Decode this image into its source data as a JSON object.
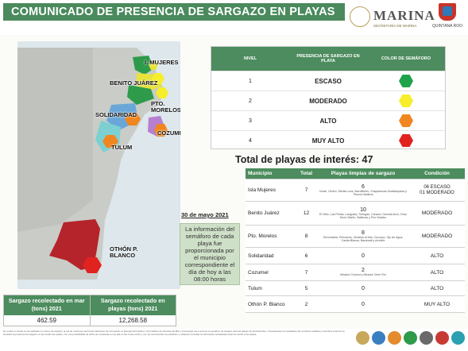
{
  "header": {
    "title": "COMUNICADO DE PRESENCIA DE SARGAZO EN PLAYAS",
    "marina_name": "MARINA",
    "marina_sub": "SECRETARÍA DE MARINA",
    "state_label": "QUINTANA ROO"
  },
  "map": {
    "labels": {
      "mujeres": "I. MUJERES",
      "benito": "BENITO JUÁREZ",
      "morelos": "PTO.\nMORELOS",
      "solidaridad": "SOLIDARIDAD",
      "cozumel": "COZUMEL",
      "tulum": "TULUM",
      "othon": "OTHÓN P.\nBLANCO"
    }
  },
  "legend": {
    "headers": [
      "NIVEL",
      "PRESENCIA DE SARGAZO EN PLAYA",
      "COLOR DE SEMÁFORO"
    ],
    "rows": [
      {
        "nivel": "1",
        "presencia": "ESCASO",
        "color": "#1fa34a"
      },
      {
        "nivel": "2",
        "presencia": "MODERADO",
        "color": "#f6ee2b"
      },
      {
        "nivel": "3",
        "presencia": "ALTO",
        "color": "#f0861f"
      },
      {
        "nivel": "4",
        "presencia": "MUY ALTO",
        "color": "#e0231e"
      }
    ]
  },
  "total_label": "Total de playas de interés: 47",
  "table": {
    "headers": [
      "Municipio",
      "Total",
      "Playas limpias de sargazo",
      "Condición"
    ],
    "rows": [
      {
        "m": "Isla Mujeres",
        "t": "7",
        "n": "6",
        "d": "Norte, Centro, Media Luna, Bachilleres, Chapanecas-Guadalupana y Tiburón Ballena",
        "c": "06 ESCASO\n01 MODERADO"
      },
      {
        "m": "Benito Juárez",
        "t": "12",
        "n": "10",
        "d": "El Niño, Las Perlas, Langosta, Tortugas, Caracol, Gaviota Azul, Chac Mool, Marlín, Ballenas y Pez Volador",
        "c": "MODERADO"
      },
      {
        "m": "Pto. Morelos",
        "t": "8",
        "n": "8",
        "d": "Secundaria, Pelícanos, Ventana al Mar, Cocoyoc, Ojo de Agua, Casita Blanca, Bandwall y Arrecife",
        "c": "MODERADO"
      },
      {
        "m": "Solidaridad",
        "t": "6",
        "n": "0",
        "d": "",
        "c": "ALTO"
      },
      {
        "m": "Cozumel",
        "t": "7",
        "n": "2",
        "d": "Mirador Chumul y Mirador Chen Río",
        "c": "ALTO"
      },
      {
        "m": "Tulum",
        "t": "5",
        "n": "0",
        "d": "",
        "c": "ALTO"
      },
      {
        "m": "Othón P. Blanco",
        "t": "2",
        "n": "0",
        "d": "",
        "c": "MUY ALTO"
      }
    ]
  },
  "date": "30 de mayo 2021",
  "info": "La información del semáforo de cada playa fue proporcionada por el municipio correspondiente el día de hoy a las 08:00 horas",
  "stats": [
    {
      "label": "Sargazo recolectado en mar (tons) 2021",
      "value": "462.59"
    },
    {
      "label": "Sargazo recolectado en playas (tons) 2021",
      "value": "12,268.58"
    }
  ],
  "footer_text": "En el sitio en donde se ha realizado un conteo de sargazo, la red de monitoreo del Centro Mexicano de Innovación en Energía del Océano y del Instituto de Ciencias del Mar y Limnología, da a conocer el semáforo de sargazo para las playas de Quintana Roo. Considerando los resultados del monitoreo satelital y recorridos costeros se identificó la presencia de sargazo en las costas del estado, con una probabilidad de arribo de moderada a muy alta en las zonas centro y sur. Se recomienda a la población y visitantes consultar la información actualizada antes de acudir a las playas.",
  "colors": {
    "green": "#4a8a5d",
    "escaso": "#1fa34a",
    "moderado": "#f6ee2b",
    "alto": "#f0861f",
    "muy_alto": "#e0231e"
  }
}
